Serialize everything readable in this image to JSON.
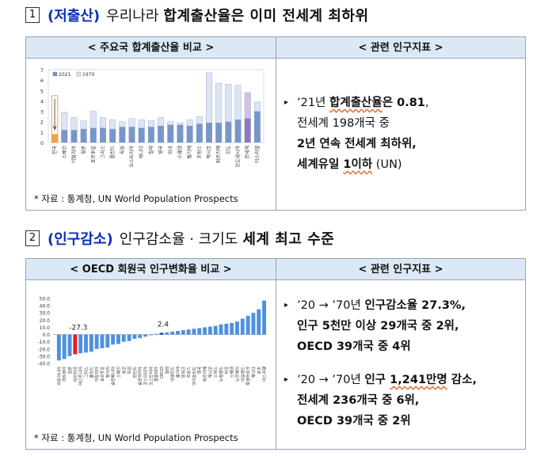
{
  "section1": {
    "num": "1",
    "tag": "(저출산)",
    "lead": "우리나라",
    "bold": "합계출산율은 이미 전세계 최하위",
    "chart_header": "< 주요국 합계출산율 비교 >",
    "indicator_header": "< 관련 인구지표 >",
    "source": "* 자료 : 통계청, UN World Population Prospects",
    "indicator": {
      "l1_pre": "’21년 ",
      "l1_bold_a": "합계출산율",
      "l1_mid": "은 ",
      "l1_bold_b": "0.81",
      "l1_post": ",",
      "l2": "전세계 198개국 중",
      "l3": "2년 연속 전세계 최하위,",
      "l4_a": "세계유일 ",
      "l4_b": "1이하",
      "l4_c": " (UN)"
    }
  },
  "section2": {
    "num": "2",
    "tag": "(인구감소)",
    "lead": "인구감소율 · 크기도",
    "bold": "세계 최고 수준",
    "chart_header": "< OECD 회원국 인구변화율 비교 >",
    "indicator_header": "< 관련 인구지표 >",
    "source": "* 자료 : 통계청, UN World Population Prospects",
    "indicator1": {
      "l1_pre": "’20 → ’70년 ",
      "l1_bold": "인구감소율 27.3%,",
      "l2_a": "인구 5천만 이상 ",
      "l2_b": "29개국 중 2위,",
      "l3_a": "OECD 39개국 중 ",
      "l3_b": "4위"
    },
    "indicator2": {
      "l1_pre": "’20 → ’70년 ",
      "l1_a": "인구 ",
      "l1_b": "1,241만명",
      "l1_c": " 감소,",
      "l2_a": "전세계 ",
      "l2_b": "236개국 중 6위,",
      "l3_a": "OECD 39개국 중 ",
      "l3_b": "2위"
    }
  },
  "chart_data": [
    {
      "type": "bar",
      "legend": [
        "2021",
        "1970"
      ],
      "legend_position": "top-left",
      "ylim": [
        0,
        7
      ],
      "yticks": [
        0,
        1,
        2,
        3,
        4,
        5,
        6,
        7
      ],
      "categories": [
        "한국",
        "스페인",
        "이탈리아",
        "일본",
        "포르투갈",
        "그리스",
        "폴란드",
        "독일",
        "오스트리아",
        "캐나다",
        "칠레",
        "영국",
        "미국",
        "스웨덴",
        "벨기에",
        "프랑스",
        "멕시코",
        "튀르키예",
        "인도",
        "인도네시아",
        "전세계",
        "이스라엘"
      ],
      "series": [
        {
          "name": "2021",
          "values": [
            0.81,
            1.2,
            1.2,
            1.3,
            1.4,
            1.4,
            1.3,
            1.5,
            1.5,
            1.4,
            1.5,
            1.6,
            1.7,
            1.7,
            1.6,
            1.8,
            1.9,
            1.9,
            2.0,
            2.2,
            2.3,
            3.0
          ]
        },
        {
          "name": "1970",
          "values": [
            4.5,
            2.9,
            2.4,
            2.1,
            3.0,
            2.4,
            2.2,
            2.0,
            2.3,
            2.2,
            2.1,
            2.4,
            2.0,
            1.9,
            2.2,
            2.5,
            6.7,
            5.7,
            5.6,
            5.5,
            4.8,
            3.9
          ]
        }
      ],
      "highlight": {
        "korea": "#f4a04f",
        "world": "#8f78b8"
      },
      "colors": {
        "2021": "#7896c8",
        "1970": "#dde4f3"
      }
    },
    {
      "type": "bar",
      "ylim": [
        -40,
        50
      ],
      "yticks": [
        50,
        40,
        30,
        20,
        10,
        0,
        -10,
        -20,
        -30,
        -40
      ],
      "annotations": [
        {
          "label": "-27.3",
          "category": "대한민국"
        },
        {
          "label": "2.4",
          "category": "OECD"
        }
      ],
      "categories": [
        "리투아니아",
        "라트비아",
        "일본",
        "대한민국",
        "에스토니아",
        "그리스",
        "폴란드",
        "이탈리아",
        "포르투갈",
        "헝가리",
        "슬로베니아",
        "스페인",
        "체코",
        "독일",
        "핀란드",
        "슬로바키아",
        "코스타리카",
        "오스트리아",
        "콜롬비아",
        "OECD",
        "칠레",
        "네덜란드",
        "벨기에",
        "덴마크",
        "프랑스",
        "아이슬란드",
        "영국",
        "튀르키예",
        "멕시코",
        "스위스",
        "뉴질랜드",
        "미국",
        "스웨덴",
        "노르웨이",
        "아일랜드",
        "룩셈부르크",
        "캐나다",
        "호주",
        "이스라엘"
      ],
      "values": [
        -36,
        -34,
        -30,
        -27.3,
        -26,
        -25,
        -24,
        -20,
        -19,
        -18,
        -14,
        -13,
        -10,
        -9,
        -6,
        -5,
        -3,
        -1,
        1,
        2.4,
        3,
        4,
        5,
        6,
        7,
        8,
        9,
        10,
        11,
        12,
        14,
        15,
        16,
        18,
        22,
        26,
        30,
        35,
        47
      ],
      "colors": {
        "default": "#4f90dd",
        "korea": "#e01e23",
        "oecd": "#1f3fae"
      }
    }
  ]
}
